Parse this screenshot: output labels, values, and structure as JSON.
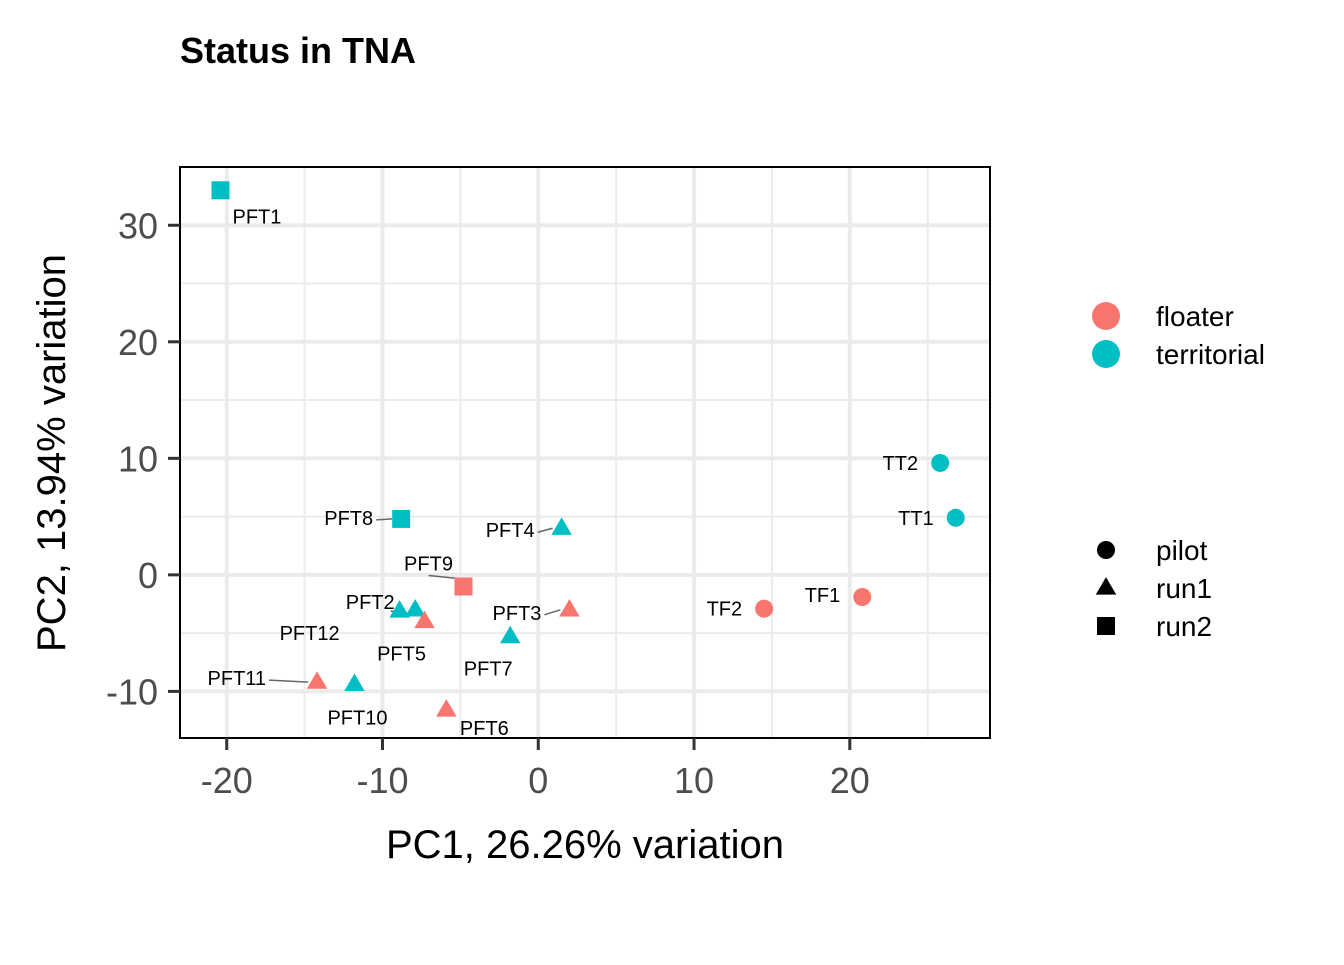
{
  "chart_data": {
    "type": "scatter",
    "title": "Status in TNA",
    "xlabel": "PC1, 26.26% variation",
    "ylabel": "PC2, 13.94% variation",
    "xlim": [
      -23,
      29
    ],
    "ylim": [
      -14,
      35
    ],
    "xticks": [
      -20,
      -10,
      0,
      10,
      20
    ],
    "yticks": [
      -10,
      0,
      10,
      20,
      30
    ],
    "grid": true,
    "legend_position": "right",
    "color_legend": [
      {
        "label": "floater",
        "color": "#F8766D"
      },
      {
        "label": "territorial",
        "color": "#00BFC4"
      }
    ],
    "shape_legend": [
      {
        "label": "pilot",
        "shape": "circle"
      },
      {
        "label": "run1",
        "shape": "triangle"
      },
      {
        "label": "run2",
        "shape": "square"
      }
    ],
    "points": [
      {
        "label": "PFT1",
        "x": -20.4,
        "y": 33.0,
        "status": "territorial",
        "batch": "run2"
      },
      {
        "label": "PFT8",
        "x": -8.8,
        "y": 4.8,
        "status": "territorial",
        "batch": "run2"
      },
      {
        "label": "PFT9",
        "x": -4.8,
        "y": -1.0,
        "status": "floater",
        "batch": "run2"
      },
      {
        "label": "PFT4",
        "x": 1.5,
        "y": 4.0,
        "status": "territorial",
        "batch": "run1"
      },
      {
        "label": "PFT3",
        "x": 2.0,
        "y": -3.0,
        "status": "floater",
        "batch": "run1"
      },
      {
        "label": "PFT2",
        "x": -7.9,
        "y": -3.0,
        "status": "territorial",
        "batch": "run1"
      },
      {
        "label": "PFT12",
        "x": -8.9,
        "y": -3.1,
        "status": "territorial",
        "batch": "run1"
      },
      {
        "label": "PFT5",
        "x": -7.3,
        "y": -4.0,
        "status": "floater",
        "batch": "run1"
      },
      {
        "label": "PFT7",
        "x": -1.8,
        "y": -5.3,
        "status": "territorial",
        "batch": "run1"
      },
      {
        "label": "PFT11",
        "x": -14.2,
        "y": -9.2,
        "status": "floater",
        "batch": "run1"
      },
      {
        "label": "PFT10",
        "x": -11.8,
        "y": -9.4,
        "status": "territorial",
        "batch": "run1"
      },
      {
        "label": "PFT6",
        "x": -5.9,
        "y": -11.6,
        "status": "floater",
        "batch": "run1"
      },
      {
        "label": "TF2",
        "x": 14.5,
        "y": -2.9,
        "status": "floater",
        "batch": "pilot"
      },
      {
        "label": "TF1",
        "x": 20.8,
        "y": -1.9,
        "status": "floater",
        "batch": "pilot"
      },
      {
        "label": "TT2",
        "x": 25.8,
        "y": 9.6,
        "status": "territorial",
        "batch": "pilot"
      },
      {
        "label": "TT1",
        "x": 26.8,
        "y": 4.9,
        "status": "territorial",
        "batch": "pilot"
      }
    ]
  }
}
